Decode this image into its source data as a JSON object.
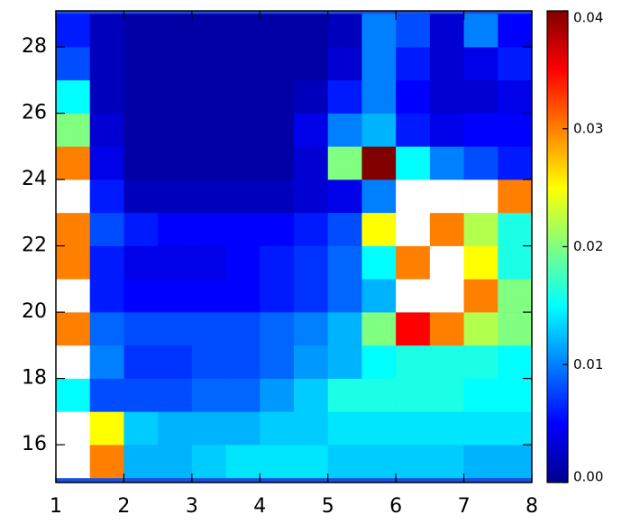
{
  "chart_data": {
    "type": "heatmap",
    "x_bins": [
      1,
      1.5,
      2,
      2.5,
      3,
      3.5,
      4,
      4.5,
      5,
      5.5,
      6,
      6.5,
      7,
      7.5,
      8
    ],
    "y_bins": [
      15,
      16,
      17,
      18,
      19,
      20,
      21,
      22,
      23,
      24,
      25,
      26,
      27,
      28,
      29
    ],
    "values": [
      [
        0.05,
        0.03,
        0.012,
        0.012,
        0.013,
        0.014,
        0.014,
        0.014,
        0.013,
        0.013,
        0.013,
        0.013,
        0.012,
        0.012
      ],
      [
        0.05,
        0.025,
        0.013,
        0.012,
        0.012,
        0.012,
        0.013,
        0.013,
        0.014,
        0.014,
        0.014,
        0.014,
        0.014,
        0.014
      ],
      [
        0.015,
        0.008,
        0.008,
        0.008,
        0.009,
        0.009,
        0.011,
        0.013,
        0.016,
        0.016,
        0.016,
        0.016,
        0.015,
        0.015
      ],
      [
        0.05,
        0.01,
        0.007,
        0.007,
        0.008,
        0.008,
        0.009,
        0.011,
        0.012,
        0.015,
        0.016,
        0.016,
        0.016,
        0.015
      ],
      [
        0.03,
        0.009,
        0.008,
        0.008,
        0.008,
        0.008,
        0.009,
        0.01,
        0.012,
        0.02,
        0.035,
        0.03,
        0.022,
        0.02
      ],
      [
        0.05,
        0.006,
        0.005,
        0.005,
        0.005,
        0.005,
        0.006,
        0.007,
        0.009,
        0.012,
        0.05,
        0.05,
        0.03,
        0.02
      ],
      [
        0.03,
        0.006,
        0.004,
        0.004,
        0.004,
        0.005,
        0.006,
        0.007,
        0.009,
        0.015,
        0.03,
        0.05,
        0.025,
        0.016
      ],
      [
        0.03,
        0.008,
        0.006,
        0.005,
        0.005,
        0.005,
        0.005,
        0.006,
        0.008,
        0.025,
        0.05,
        0.03,
        0.022,
        0.016
      ],
      [
        0.05,
        0.006,
        0.002,
        0.002,
        0.002,
        0.002,
        0.002,
        0.003,
        0.004,
        0.01,
        0.05,
        0.05,
        0.05,
        0.03
      ],
      [
        0.03,
        0.004,
        0.001,
        0.001,
        0.001,
        0.001,
        0.001,
        0.003,
        0.02,
        0.04,
        0.015,
        0.01,
        0.008,
        0.006
      ],
      [
        0.02,
        0.003,
        0.001,
        0.001,
        0.001,
        0.001,
        0.001,
        0.004,
        0.01,
        0.012,
        0.006,
        0.004,
        0.005,
        0.005
      ],
      [
        0.015,
        0.002,
        0.001,
        0.001,
        0.001,
        0.001,
        0.001,
        0.002,
        0.006,
        0.01,
        0.005,
        0.003,
        0.003,
        0.004
      ],
      [
        0.008,
        0.002,
        0.001,
        0.001,
        0.001,
        0.001,
        0.001,
        0.001,
        0.003,
        0.01,
        0.006,
        0.003,
        0.004,
        0.006
      ],
      [
        0.006,
        0.002,
        0.001,
        0.001,
        0.001,
        0.001,
        0.001,
        0.001,
        0.002,
        0.01,
        0.008,
        0.003,
        0.01,
        0.005
      ]
    ],
    "xlim": [
      1,
      8
    ],
    "xticks": [
      1,
      2,
      3,
      4,
      5,
      6,
      7,
      8
    ],
    "ylim": [
      14.86,
      29.09
    ],
    "yticks": [
      16,
      18,
      20,
      22,
      24,
      26,
      28
    ],
    "clim": [
      0,
      0.04
    ],
    "cticks": [
      {
        "value": 0,
        "label": "0.00"
      },
      0.01,
      0.02,
      0.03,
      0.04
    ],
    "colorscale": [
      "#00008f",
      "#0000ff",
      "#0080ff",
      "#00ffff",
      "#80ff80",
      "#ffff00",
      "#ff8000",
      "#ff0000",
      "#800000"
    ],
    "over_color": "#ffffff"
  }
}
